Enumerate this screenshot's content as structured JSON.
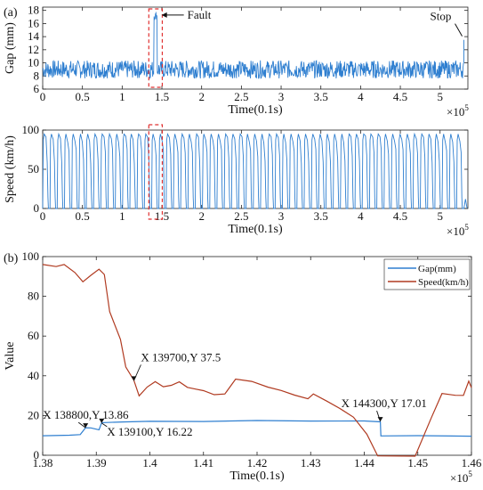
{
  "panel_labels": {
    "a": "(a)",
    "b": "(b)"
  },
  "chart_data": [
    {
      "id": "gap",
      "type": "line",
      "xlabel": "Time(0.1s)",
      "ylabel": "Gap (mm)",
      "x_multiplier": "×10",
      "x_multiplier_exp": "5",
      "xlim": [
        0,
        5.35
      ],
      "ylim": [
        6,
        18.5
      ],
      "xticks": [
        0,
        0.5,
        1,
        1.5,
        2,
        2.5,
        3,
        3.5,
        4,
        4.5,
        5
      ],
      "xtick_labels": [
        "0",
        "0.5",
        "1",
        "1.5",
        "2",
        "2.5",
        "3",
        "3.5",
        "4",
        "4.5",
        "5"
      ],
      "yticks": [
        6,
        8,
        10,
        12,
        14,
        16,
        18
      ],
      "ytick_labels": [
        "6",
        "8",
        "10",
        "12",
        "14",
        "16",
        "18"
      ],
      "series": [
        {
          "color": "#2f7fd0",
          "description": "gap oscillates around 9 mm (approx 8-10.5) over entire run; spike to about 17.5 mm near 1.4e5 (fault); ends with a step to about 13.5 at 5.3e5 (stop)",
          "baseline": 9,
          "band": [
            8,
            10.5
          ],
          "fault_x": [
            1.4,
            1.44
          ],
          "fault_y": 17.2,
          "stop_x": 5.3,
          "stop_y": 13.5
        }
      ],
      "annotations": [
        {
          "text": "Fault",
          "x": 1.44,
          "y": 17.3
        },
        {
          "text": "Stop",
          "x": 5.3,
          "y": 13.8
        }
      ]
    },
    {
      "id": "speed",
      "type": "line",
      "xlabel": "Time(0.1s)",
      "ylabel": "Speed (km/h)",
      "x_multiplier": "×10",
      "x_multiplier_exp": "5",
      "xlim": [
        0,
        5.35
      ],
      "ylim": [
        0,
        100
      ],
      "xticks": [
        0,
        0.5,
        1,
        1.5,
        2,
        2.5,
        3,
        3.5,
        4,
        4.5,
        5
      ],
      "xtick_labels": [
        "0",
        "0.5",
        "1",
        "1.5",
        "2",
        "2.5",
        "3",
        "3.5",
        "4",
        "4.5",
        "5"
      ],
      "yticks": [
        0,
        50,
        100
      ],
      "ytick_labels": [
        "0",
        "50",
        "100"
      ],
      "series": [
        {
          "color": "#2f7fd0",
          "description": "repeated trapezoidal runs between 0 and about 95 km/h across the whole time range, ending near 0 at 5.3e5",
          "peak": 95,
          "cycles": 58
        }
      ],
      "highlight_x": [
        1.38,
        1.46
      ]
    },
    {
      "id": "detail",
      "type": "line",
      "xlabel": "Time(0.1s)",
      "ylabel": "Value",
      "x_multiplier": "×10",
      "x_multiplier_exp": "5",
      "xlim": [
        1.38,
        1.46
      ],
      "ylim": [
        0,
        100
      ],
      "xticks": [
        1.38,
        1.39,
        1.4,
        1.41,
        1.42,
        1.43,
        1.44,
        1.45,
        1.46
      ],
      "xtick_labels": [
        "1.38",
        "1.39",
        "1.4",
        "1.41",
        "1.42",
        "1.43",
        "1.44",
        "1.45",
        "1.46"
      ],
      "yticks": [
        0,
        20,
        40,
        60,
        80,
        100
      ],
      "ytick_labels": [
        "0",
        "20",
        "40",
        "60",
        "80",
        "100"
      ],
      "legend_position": "top-right",
      "series": [
        {
          "name": "Gap(mm)",
          "color": "#2f7fd0",
          "points": [
            [
              1.38,
              9.8
            ],
            [
              1.385,
              10
            ],
            [
              1.387,
              10.4
            ],
            [
              1.388,
              13.86
            ],
            [
              1.389,
              14
            ],
            [
              1.3905,
              13
            ],
            [
              1.391,
              16.22
            ],
            [
              1.395,
              16.5
            ],
            [
              1.4,
              17
            ],
            [
              1.41,
              17.3
            ],
            [
              1.42,
              17.5
            ],
            [
              1.43,
              17.3
            ],
            [
              1.44,
              17.2
            ],
            [
              1.443,
              17.01
            ],
            [
              1.4431,
              9.6
            ],
            [
              1.45,
              9.6
            ],
            [
              1.46,
              9.6
            ]
          ]
        },
        {
          "name": "Speed(km/h)",
          "color": "#b03a20",
          "points": [
            [
              1.38,
              96
            ],
            [
              1.3825,
              95
            ],
            [
              1.384,
              96.5
            ],
            [
              1.386,
              92
            ],
            [
              1.3875,
              87
            ],
            [
              1.389,
              90
            ],
            [
              1.3905,
              93.5
            ],
            [
              1.3915,
              91
            ],
            [
              1.3925,
              72
            ],
            [
              1.3945,
              58
            ],
            [
              1.3955,
              45
            ],
            [
              1.397,
              37.5
            ],
            [
              1.398,
              30
            ],
            [
              1.3995,
              34
            ],
            [
              1.401,
              37
            ],
            [
              1.4025,
              34
            ],
            [
              1.404,
              35.5
            ],
            [
              1.4055,
              37
            ],
            [
              1.407,
              34
            ],
            [
              1.4085,
              33
            ],
            [
              1.41,
              32
            ],
            [
              1.412,
              31
            ],
            [
              1.414,
              30.5
            ],
            [
              1.416,
              38.5
            ],
            [
              1.419,
              37
            ],
            [
              1.422,
              34
            ],
            [
              1.4245,
              33
            ],
            [
              1.427,
              30
            ],
            [
              1.4295,
              29
            ],
            [
              1.4305,
              30.5
            ],
            [
              1.433,
              27
            ],
            [
              1.4355,
              24
            ],
            [
              1.438,
              19
            ],
            [
              1.4405,
              11
            ],
            [
              1.4425,
              0
            ],
            [
              1.4495,
              0
            ],
            [
              1.4525,
              19
            ],
            [
              1.4545,
              30.5
            ],
            [
              1.457,
              30
            ],
            [
              1.4585,
              30
            ],
            [
              1.4595,
              37
            ],
            [
              1.46,
              34
            ]
          ]
        }
      ],
      "annotations": [
        {
          "text": "X 139700,Y 37.5",
          "x": 1.397,
          "y": 37.5
        },
        {
          "text": "X 138800,Y 13.86",
          "x": 1.388,
          "y": 13.86
        },
        {
          "text": "X 139100,Y 16.22",
          "x": 1.391,
          "y": 16.22
        },
        {
          "text": "X 144300,Y 17.01",
          "x": 1.443,
          "y": 17.01
        }
      ]
    }
  ]
}
